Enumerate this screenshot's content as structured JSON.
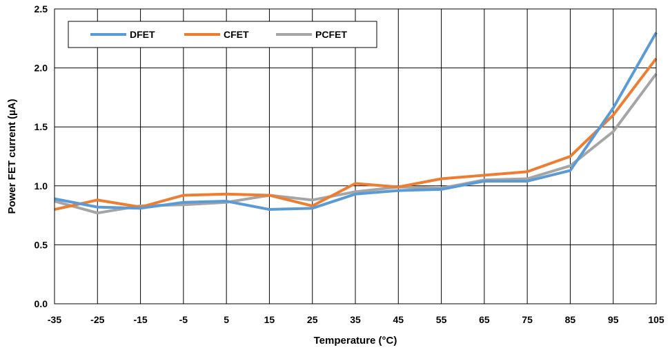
{
  "chart_data": {
    "type": "line",
    "xlabel": "Temperature (°C)",
    "ylabel": "Power FET current (µA)",
    "x": [
      -35,
      -25,
      -15,
      -5,
      5,
      15,
      25,
      35,
      45,
      55,
      65,
      75,
      85,
      95,
      105
    ],
    "x_tick_labels": [
      "-35",
      "-25",
      "-15",
      "-5",
      "5",
      "15",
      "25",
      "35",
      "45",
      "55",
      "65",
      "75",
      "85",
      "95",
      "105"
    ],
    "xlim": [
      -35,
      105
    ],
    "ylim": [
      0,
      2.5
    ],
    "y_ticks": [
      0,
      0.5,
      1.0,
      1.5,
      2.0,
      2.5
    ],
    "y_tick_labels": [
      "0.0",
      "0.5",
      "1.0",
      "1.5",
      "2.0",
      "2.5"
    ],
    "grid": true,
    "legend_position": "top-left",
    "series": [
      {
        "name": "DFET",
        "color": "#5B9BD5",
        "values": [
          0.89,
          0.82,
          0.81,
          0.86,
          0.87,
          0.8,
          0.81,
          0.93,
          0.96,
          0.97,
          1.04,
          1.04,
          1.13,
          1.66,
          2.3
        ]
      },
      {
        "name": "CFET",
        "color": "#ED7D31",
        "values": [
          0.8,
          0.88,
          0.82,
          0.92,
          0.93,
          0.92,
          0.83,
          1.02,
          0.99,
          1.06,
          1.09,
          1.12,
          1.25,
          1.6,
          2.08
        ]
      },
      {
        "name": "PCFET",
        "color": "#A5A5A5",
        "values": [
          0.87,
          0.77,
          0.83,
          0.84,
          0.86,
          0.92,
          0.88,
          0.95,
          0.99,
          0.98,
          1.05,
          1.06,
          1.17,
          1.46,
          1.95
        ]
      }
    ]
  }
}
